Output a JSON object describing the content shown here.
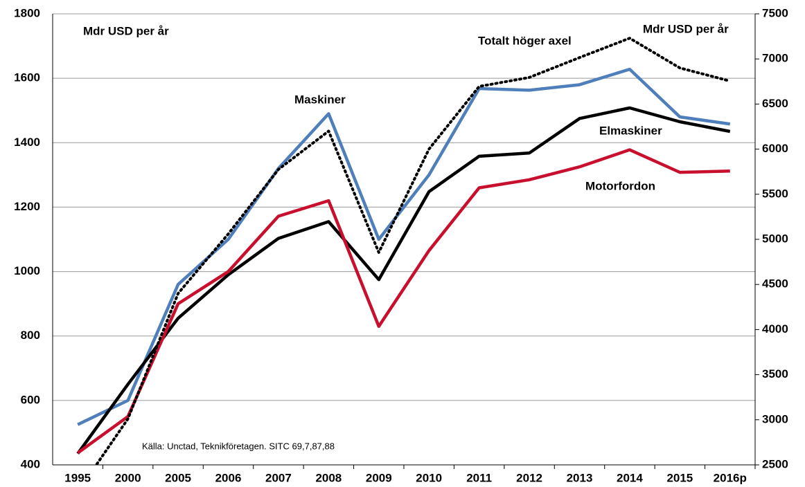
{
  "chart_data": {
    "type": "line",
    "ylabel": "Mdr USD per år",
    "y2label": "Mdr USD per år",
    "source": "Källa: Unctad, Teknikföretagen.  SITC 69,7,87,88",
    "categories": [
      "1995",
      "2000",
      "2005",
      "2006",
      "2007",
      "2008",
      "2009",
      "2010",
      "2011",
      "2012",
      "2013",
      "2014",
      "2015",
      "2016p"
    ],
    "series": [
      {
        "name": "Maskiner",
        "color": "#4f7fba",
        "values": [
          525,
          600,
          960,
          1100,
          1320,
          1490,
          1100,
          1300,
          1568,
          1563,
          1580,
          1628,
          1480,
          1458
        ]
      },
      {
        "name": "Elmaskiner",
        "color": "#000000",
        "values": [
          435,
          650,
          855,
          990,
          1103,
          1155,
          975,
          1248,
          1358,
          1368,
          1475,
          1508,
          1465,
          1435
        ]
      },
      {
        "name": "Motorfordon",
        "color": "#c8102e",
        "values": [
          437,
          550,
          900,
          1000,
          1172,
          1220,
          830,
          1065,
          1260,
          1285,
          1325,
          1378,
          1308,
          1312
        ]
      },
      {
        "name": "Totalt höger axel",
        "color": "#000000",
        "dotted": true,
        "axis": "y2",
        "values": [
          2200,
          3010,
          4400,
          5060,
          5775,
          6200,
          4855,
          6000,
          6695,
          6795,
          7015,
          7230,
          6900,
          6755
        ]
      }
    ],
    "ylim": [
      400,
      1800
    ],
    "yticks": [
      400,
      600,
      800,
      1000,
      1200,
      1400,
      1600,
      1800
    ],
    "y2lim": [
      2500,
      7500
    ],
    "y2ticks": [
      2500,
      3000,
      3500,
      4000,
      4500,
      5000,
      5500,
      6000,
      6500,
      7000,
      7500
    ],
    "grid": true
  }
}
